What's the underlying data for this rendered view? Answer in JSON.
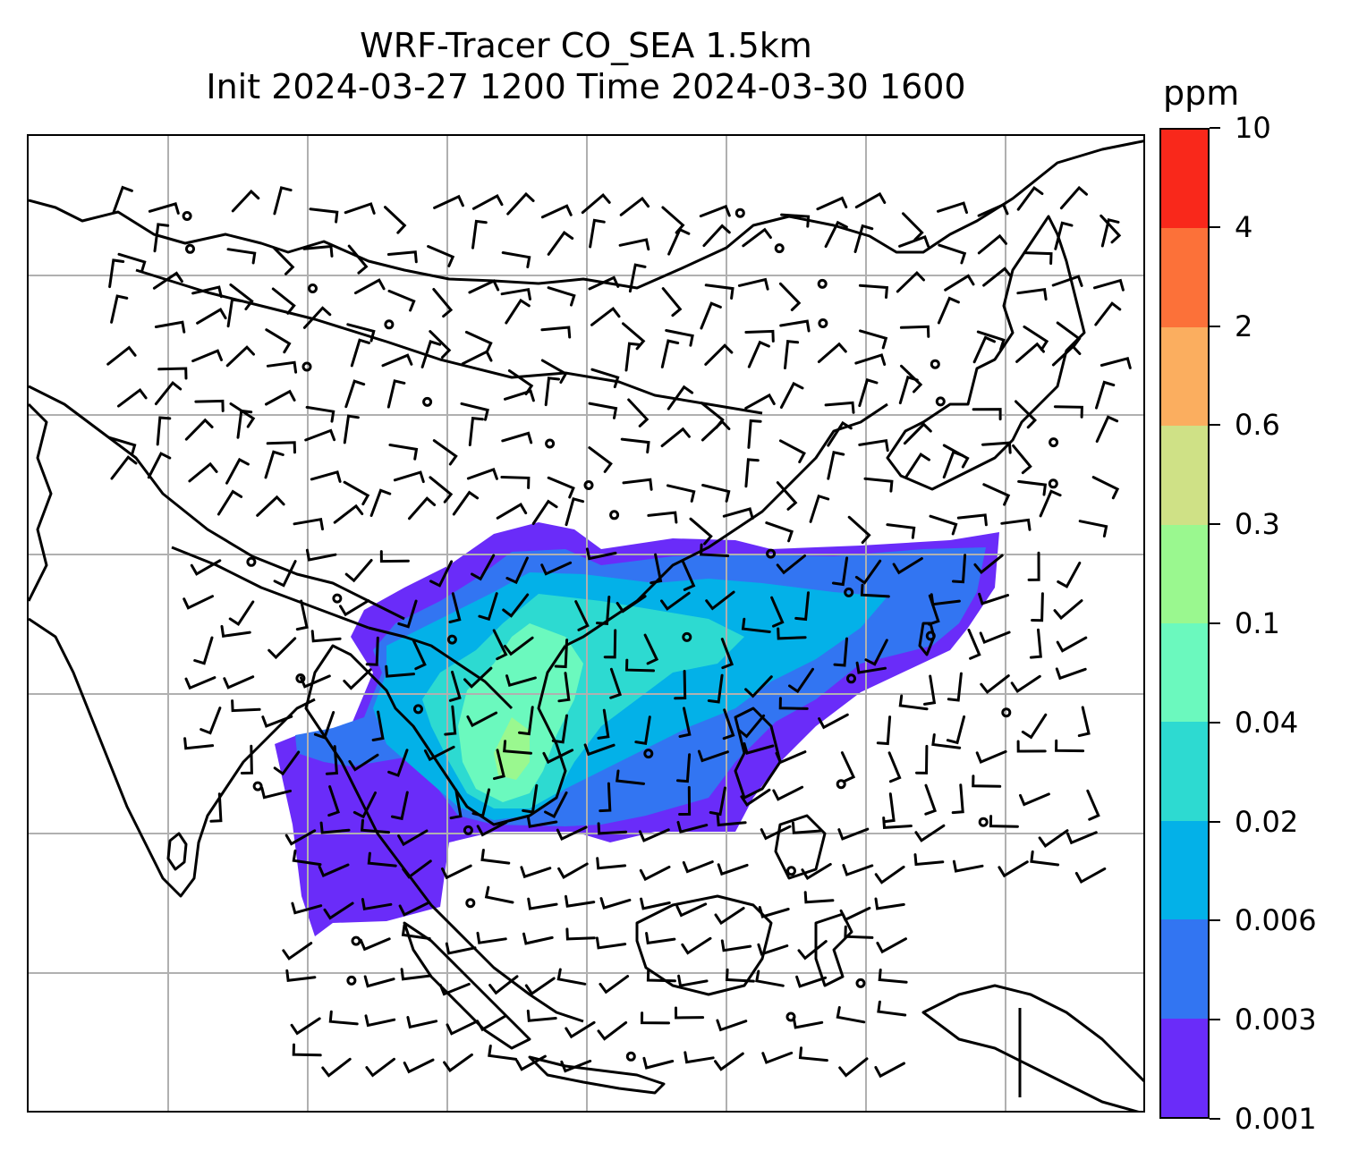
{
  "title": {
    "line1": "WRF-Tracer CO_SEA 1.5km",
    "line2": "Init 2024-03-27 1200 Time 2024-03-30 1600"
  },
  "colorbar": {
    "unit": "ppm",
    "levels": [
      "0.001",
      "0.003",
      "0.006",
      "0.02",
      "0.04",
      "0.1",
      "0.3",
      "0.6",
      "2",
      "4",
      "10"
    ],
    "colors": [
      "#6a2cf9",
      "#3275f2",
      "#03b1e8",
      "#2ddad1",
      "#6bf9be",
      "#9af88f",
      "#cfe186",
      "#fbae5f",
      "#fc7139",
      "#f9281b"
    ]
  },
  "map": {
    "grid": "on",
    "overlays": [
      "coastlines",
      "country-borders",
      "wind-barbs",
      "calm-circles",
      "tracer-concentration-fill"
    ]
  }
}
